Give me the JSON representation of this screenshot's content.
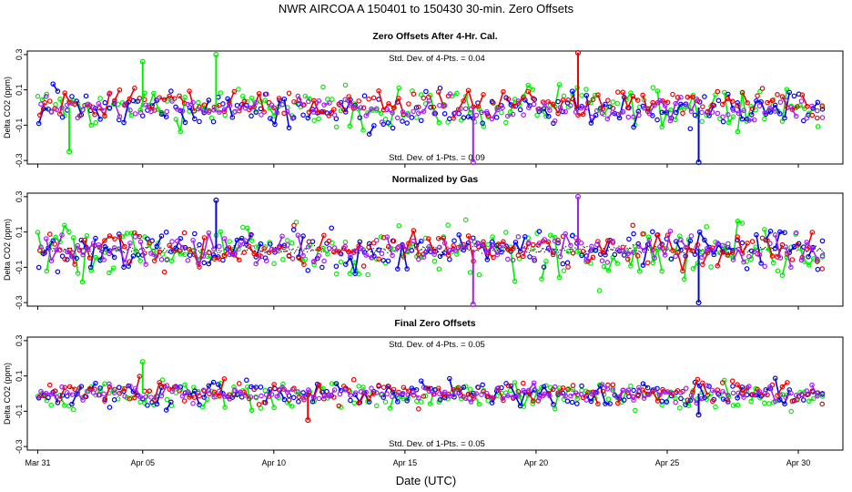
{
  "figure": {
    "title": "NWR   AIRCOA A   150401 to 150430   30-min. Zero Offsets",
    "xlabel": "Date (UTC)",
    "x_tick_labels": [
      "Mar 31",
      "Apr 05",
      "Apr 10",
      "Apr 15",
      "Apr 20",
      "Apr 25",
      "Apr 30"
    ],
    "colors": {
      "series_green": "#00ee00",
      "series_blue": "#0000ee",
      "series_red": "#ee0000",
      "series_purple": "#a020f0",
      "normalized_dots": "#000000"
    }
  },
  "chart_data": [
    {
      "type": "scatter",
      "title": "Zero Offsets After 4-Hr. Cal.",
      "ylabel": "Delta CO2 (ppm)",
      "xlabel": "Date (UTC)",
      "x_domain_days": [
        0.6,
        31.7
      ],
      "ylim": [
        -0.32,
        0.32
      ],
      "y_ticks": [
        -0.3,
        -0.1,
        0.1,
        0.3
      ],
      "y_tick_labels": [
        "-0.3",
        "-0.1",
        "0.1",
        "0.3"
      ],
      "annotations": [
        "Std. Dev. of 4-Pts. = 0.04",
        "Std. Dev. of 1-Pts. = 0.09"
      ],
      "series_names": [
        "green",
        "blue",
        "red",
        "purple"
      ],
      "series_spread": [
        0.09,
        0.07,
        0.06,
        0.05
      ],
      "series_offset": [
        0.0,
        -0.01,
        0.02,
        -0.01
      ],
      "spikes": [
        {
          "day": 7.8,
          "value": 0.3,
          "series": "green"
        },
        {
          "day": 17.6,
          "value": -0.31,
          "series": "purple"
        },
        {
          "day": 21.6,
          "value": 0.31,
          "series": "red"
        },
        {
          "day": 26.2,
          "value": -0.31,
          "series": "blue"
        },
        {
          "day": 2.2,
          "value": -0.25,
          "series": "green"
        },
        {
          "day": 5.0,
          "value": 0.26,
          "series": "green"
        }
      ]
    },
    {
      "type": "scatter",
      "title": "Normalized by Gas",
      "ylabel": "Delta CO2 (ppm)",
      "xlabel": "Date (UTC)",
      "x_domain_days": [
        0.6,
        31.7
      ],
      "ylim": [
        -0.32,
        0.32
      ],
      "y_ticks": [
        -0.3,
        -0.1,
        0.1,
        0.3
      ],
      "y_tick_labels": [
        "-0.3",
        "-0.1",
        "0.1",
        "0.3"
      ],
      "annotations": [],
      "series_names": [
        "green",
        "blue",
        "red",
        "purple"
      ],
      "series_spread": [
        0.11,
        0.09,
        0.07,
        0.07
      ],
      "series_offset": [
        0.0,
        0.0,
        0.0,
        0.0
      ],
      "normalized_band": 0.015,
      "spikes": [
        {
          "day": 7.8,
          "value": 0.28,
          "series": "blue"
        },
        {
          "day": 17.6,
          "value": -0.31,
          "series": "purple"
        },
        {
          "day": 21.6,
          "value": 0.3,
          "series": "purple"
        },
        {
          "day": 26.2,
          "value": -0.3,
          "series": "blue"
        }
      ]
    },
    {
      "type": "scatter",
      "title": "Final Zero Offsets",
      "ylabel": "Delta CO2 (ppm)",
      "xlabel": "Date (UTC)",
      "x_domain_days": [
        0.6,
        31.7
      ],
      "ylim": [
        -0.32,
        0.32
      ],
      "y_ticks": [
        -0.3,
        -0.1,
        0.1,
        0.3
      ],
      "y_tick_labels": [
        "-0.3",
        "-0.1",
        "0.1",
        "0.3"
      ],
      "annotations": [
        "Std. Dev. of 4-Pts. = 0.05",
        "Std. Dev. of 1-Pts. = 0.05"
      ],
      "series_names": [
        "green",
        "blue",
        "red",
        "purple"
      ],
      "series_spread": [
        0.06,
        0.05,
        0.05,
        0.035
      ],
      "series_offset": [
        -0.01,
        0.0,
        0.01,
        0.0
      ],
      "spikes": [
        {
          "day": 5.0,
          "value": 0.18,
          "series": "green"
        },
        {
          "day": 11.3,
          "value": -0.15,
          "series": "red"
        },
        {
          "day": 26.2,
          "value": -0.12,
          "series": "blue"
        }
      ]
    }
  ]
}
